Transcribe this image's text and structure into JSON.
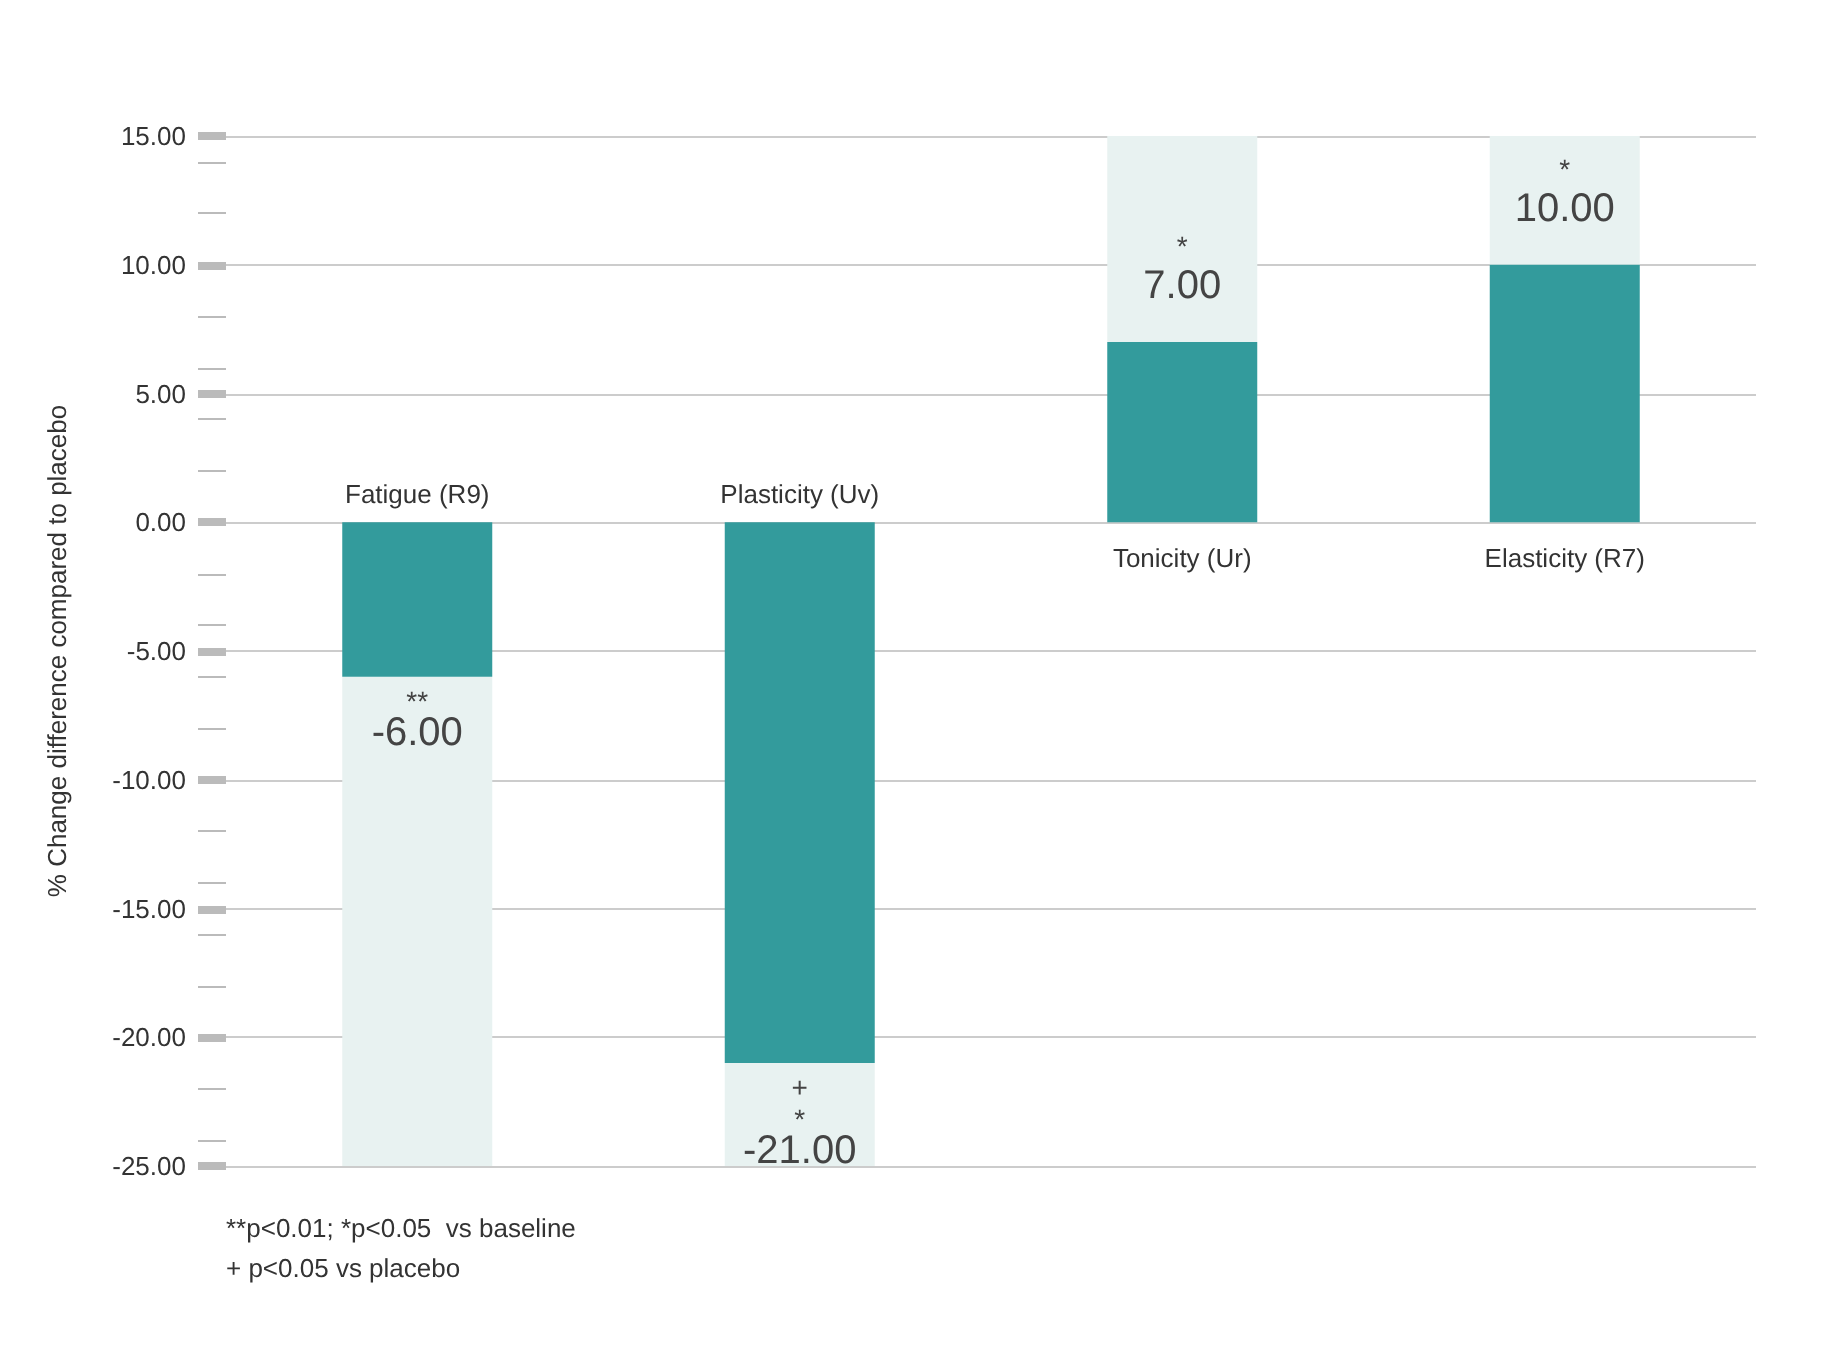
{
  "chart_data": {
    "type": "bar",
    "ylabel": "% Change difference compared to placebo",
    "categories": [
      "Fatigue (R9)",
      "Plasticity (Uv)",
      "Tonicity (Ur)",
      "Elasticity (R7)"
    ],
    "series": [
      {
        "color": "#339b9c",
        "values": [
          -6,
          -21,
          7,
          10
        ],
        "value_labels": [
          "-6.00",
          "-21.00",
          "7.00",
          "10.00"
        ]
      },
      {
        "color": "#e8f2f1",
        "values": [
          -19,
          -4,
          8,
          5
        ]
      }
    ],
    "stacked": true,
    "ylim": [
      -25,
      15
    ],
    "yticks": [
      {
        "value": -25,
        "label": "-25.00"
      },
      {
        "value": -20,
        "label": "-20.00"
      },
      {
        "value": -15,
        "label": "-15.00"
      },
      {
        "value": -10,
        "label": "-10.00"
      },
      {
        "value": -5,
        "label": "-5.00"
      },
      {
        "value": 0,
        "label": "0.00"
      },
      {
        "value": 5,
        "label": "5.00"
      },
      {
        "value": 10,
        "label": "10.00"
      },
      {
        "value": 15,
        "label": "15.00"
      }
    ],
    "grid": "y",
    "annotations": [
      {
        "text": "**",
        "x": "Fatigue (R9)",
        "y": -6
      },
      {
        "text": "+\n*",
        "x": "Plasticity (Uv)",
        "y": -21
      },
      {
        "text": "*",
        "x": "Tonicity (Ur)",
        "y": 7
      },
      {
        "text": "*",
        "x": "Elasticity (R7)",
        "y": 10
      },
      "**p<0.01; *p<0.05  vs baseline\n+ p<0.05 vs placebo"
    ]
  }
}
